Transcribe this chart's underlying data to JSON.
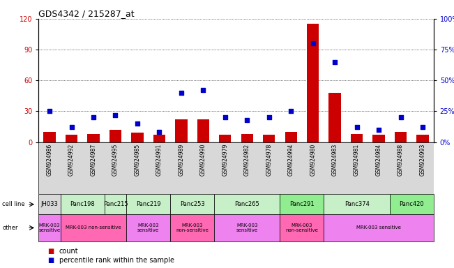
{
  "title": "GDS4342 / 215287_at",
  "samples": [
    "GSM924986",
    "GSM924992",
    "GSM924987",
    "GSM924995",
    "GSM924985",
    "GSM924991",
    "GSM924989",
    "GSM924990",
    "GSM924979",
    "GSM924982",
    "GSM924978",
    "GSM924994",
    "GSM924980",
    "GSM924983",
    "GSM924981",
    "GSM924984",
    "GSM924988",
    "GSM924993"
  ],
  "counts": [
    10,
    7,
    8,
    12,
    9,
    7,
    22,
    22,
    7,
    8,
    7,
    10,
    115,
    48,
    8,
    7,
    10,
    7
  ],
  "percentiles": [
    25,
    12,
    20,
    22,
    15,
    8,
    40,
    42,
    20,
    18,
    20,
    25,
    80,
    65,
    12,
    10,
    20,
    12
  ],
  "cell_lines": [
    {
      "name": "JH033",
      "start": 0,
      "end": 1,
      "color": "#d8d8d8"
    },
    {
      "name": "Panc198",
      "start": 1,
      "end": 3,
      "color": "#c8f0c8"
    },
    {
      "name": "Panc215",
      "start": 3,
      "end": 4,
      "color": "#c8f0c8"
    },
    {
      "name": "Panc219",
      "start": 4,
      "end": 6,
      "color": "#c8f0c8"
    },
    {
      "name": "Panc253",
      "start": 6,
      "end": 8,
      "color": "#c8f0c8"
    },
    {
      "name": "Panc265",
      "start": 8,
      "end": 11,
      "color": "#c8f0c8"
    },
    {
      "name": "Panc291",
      "start": 11,
      "end": 13,
      "color": "#90ee90"
    },
    {
      "name": "Panc374",
      "start": 13,
      "end": 16,
      "color": "#c8f0c8"
    },
    {
      "name": "Panc420",
      "start": 16,
      "end": 18,
      "color": "#90ee90"
    }
  ],
  "other_groups": [
    {
      "label": "MRK-003\nsensitive",
      "start": 0,
      "end": 1,
      "color": "#ee82ee"
    },
    {
      "label": "MRK-003 non-sensitive",
      "start": 1,
      "end": 4,
      "color": "#ff69b4"
    },
    {
      "label": "MRK-003\nsensitive",
      "start": 4,
      "end": 6,
      "color": "#ee82ee"
    },
    {
      "label": "MRK-003\nnon-sensitive",
      "start": 6,
      "end": 8,
      "color": "#ff69b4"
    },
    {
      "label": "MRK-003\nsensitive",
      "start": 8,
      "end": 11,
      "color": "#ee82ee"
    },
    {
      "label": "MRK-003\nnon-sensitive",
      "start": 11,
      "end": 13,
      "color": "#ff69b4"
    },
    {
      "label": "MRK-003 sensitive",
      "start": 13,
      "end": 18,
      "color": "#ee82ee"
    }
  ],
  "ylim_left": [
    0,
    120
  ],
  "ylim_right": [
    0,
    100
  ],
  "yticks_left": [
    0,
    30,
    60,
    90,
    120
  ],
  "yticks_right": [
    0,
    25,
    50,
    75,
    100
  ],
  "bar_color": "#cc0000",
  "dot_color": "#0000cc",
  "bg_color": "#ffffff",
  "legend_items": [
    {
      "label": "count",
      "color": "#cc0000"
    },
    {
      "label": "percentile rank within the sample",
      "color": "#0000cc"
    }
  ],
  "xtick_bg": "#d8d8d8"
}
